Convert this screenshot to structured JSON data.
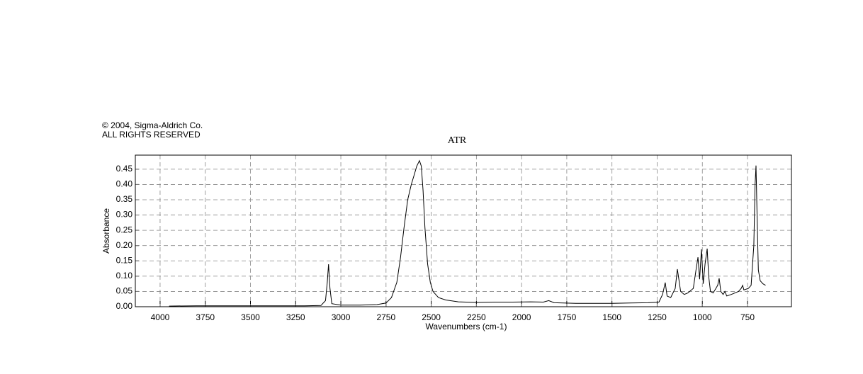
{
  "chart_data": {
    "type": "line",
    "copyright": "© 2004, Sigma-Aldrich Co.",
    "rights": "ALL RIGHTS RESERVED",
    "title": "ATR",
    "xlabel": "Wavenumbers (cm-1)",
    "ylabel": "Absorbance",
    "xlim": [
      4137,
      507
    ],
    "ylim": [
      0,
      0.496
    ],
    "grid": true,
    "xticks": [
      4000,
      3750,
      3500,
      3250,
      3000,
      2750,
      2500,
      2250,
      2000,
      1750,
      1500,
      1250,
      1000,
      750
    ],
    "yticks": [
      {
        "value": 0,
        "label": "0.00"
      },
      {
        "value": 0.05,
        "label": "0.05"
      },
      {
        "value": 0.1,
        "label": "0.10"
      },
      {
        "value": 0.15,
        "label": "0.15"
      },
      {
        "value": 0.2,
        "label": "0.20"
      },
      {
        "value": 0.25,
        "label": "0.25"
      },
      {
        "value": 0.3,
        "label": "0.30"
      },
      {
        "value": 0.35,
        "label": "0.35"
      },
      {
        "value": 0.4,
        "label": "0.40"
      },
      {
        "value": 0.45,
        "label": "0.45"
      }
    ],
    "x": [
      3950,
      3800,
      3600,
      3400,
      3200,
      3110,
      3085,
      3075,
      3068,
      3060,
      3050,
      3000,
      2900,
      2800,
      2750,
      2720,
      2690,
      2670,
      2650,
      2630,
      2610,
      2595,
      2580,
      2565,
      2555,
      2545,
      2535,
      2520,
      2505,
      2490,
      2460,
      2420,
      2350,
      2250,
      2150,
      2050,
      1950,
      1880,
      1850,
      1820,
      1700,
      1600,
      1500,
      1400,
      1300,
      1240,
      1220,
      1205,
      1195,
      1175,
      1150,
      1138,
      1130,
      1120,
      1100,
      1080,
      1050,
      1035,
      1024,
      1015,
      1005,
      995,
      985,
      973,
      965,
      955,
      940,
      925,
      915,
      907,
      898,
      885,
      875,
      865,
      840,
      800,
      785,
      777,
      770,
      745,
      730,
      715,
      708,
      703,
      697,
      690,
      680,
      665,
      650
    ],
    "series": [
      {
        "color": "#000000",
        "values": [
          0.002,
          0.003,
          0.003,
          0.003,
          0.003,
          0.004,
          0.02,
          0.08,
          0.139,
          0.06,
          0.01,
          0.005,
          0.005,
          0.007,
          0.012,
          0.03,
          0.08,
          0.16,
          0.26,
          0.35,
          0.4,
          0.43,
          0.46,
          0.478,
          0.46,
          0.38,
          0.26,
          0.14,
          0.08,
          0.05,
          0.03,
          0.022,
          0.016,
          0.014,
          0.015,
          0.015,
          0.016,
          0.015,
          0.02,
          0.013,
          0.011,
          0.011,
          0.011,
          0.012,
          0.013,
          0.015,
          0.04,
          0.079,
          0.035,
          0.03,
          0.06,
          0.123,
          0.09,
          0.05,
          0.04,
          0.045,
          0.06,
          0.12,
          0.162,
          0.09,
          0.188,
          0.075,
          0.14,
          0.19,
          0.1,
          0.05,
          0.045,
          0.06,
          0.07,
          0.093,
          0.05,
          0.04,
          0.05,
          0.035,
          0.04,
          0.05,
          0.06,
          0.07,
          0.055,
          0.06,
          0.07,
          0.2,
          0.4,
          0.462,
          0.3,
          0.12,
          0.085,
          0.075,
          0.07
        ]
      }
    ]
  }
}
